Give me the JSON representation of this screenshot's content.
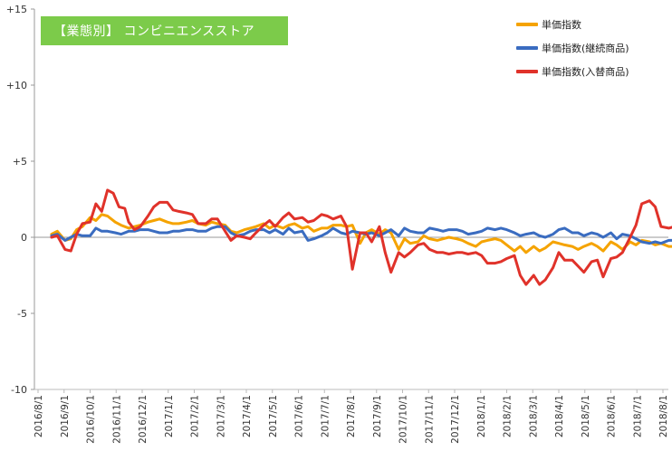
{
  "chart_data": {
    "type": "line",
    "title": "【業態別】 コンビニエンスストア",
    "title_bg": "#7CCB4A",
    "ylim": [
      -10,
      15
    ],
    "yticks": [
      {
        "value": 15,
        "label": "+15"
      },
      {
        "value": 10,
        "label": "+10"
      },
      {
        "value": 5,
        "label": "+5"
      },
      {
        "value": 0,
        "label": "0"
      },
      {
        "value": -5,
        "label": "-5"
      },
      {
        "value": -10,
        "label": "-10"
      }
    ],
    "xticks": [
      "2016/8/1",
      "2016/9/1",
      "2016/10/1",
      "2016/11/1",
      "2016/12/1",
      "2017/1/1",
      "2017/2/1",
      "2017/3/1",
      "2017/4/1",
      "2017/5/1",
      "2017/6/1",
      "2017/7/1",
      "2017/8/1",
      "2017/9/1",
      "2017/10/1",
      "2017/11/1",
      "2017/12/1",
      "2018/1/1",
      "2018/2/1",
      "2018/3/1",
      "2018/4/1",
      "2018/5/1",
      "2018/6/1",
      "2018/7/1",
      "2018/8/1"
    ],
    "legend_position": "top-right",
    "gridlines": false,
    "series": [
      {
        "name": "単価指数",
        "color": "#F5A300",
        "points": [
          [
            0.7,
            0.2
          ],
          [
            1.0,
            0.4
          ],
          [
            1.4,
            -0.2
          ],
          [
            1.7,
            -0.1
          ],
          [
            2.0,
            0.5
          ],
          [
            2.3,
            0.7
          ],
          [
            2.7,
            1.3
          ],
          [
            3.0,
            1.1
          ],
          [
            3.3,
            1.5
          ],
          [
            3.6,
            1.4
          ],
          [
            4.0,
            1.0
          ],
          [
            4.3,
            0.8
          ],
          [
            4.7,
            0.6
          ],
          [
            5.0,
            0.7
          ],
          [
            5.3,
            0.8
          ],
          [
            5.7,
            1.0
          ],
          [
            6.0,
            1.1
          ],
          [
            6.3,
            1.2
          ],
          [
            6.7,
            1.0
          ],
          [
            7.0,
            0.9
          ],
          [
            7.3,
            0.9
          ],
          [
            7.7,
            1.0
          ],
          [
            8.0,
            1.1
          ],
          [
            8.3,
            0.9
          ],
          [
            8.7,
            0.8
          ],
          [
            9.0,
            1.0
          ],
          [
            9.3,
            0.9
          ],
          [
            9.7,
            0.8
          ],
          [
            10.0,
            0.4
          ],
          [
            10.3,
            0.3
          ],
          [
            10.7,
            0.5
          ],
          [
            11.0,
            0.6
          ],
          [
            11.3,
            0.7
          ],
          [
            11.7,
            0.9
          ],
          [
            12.0,
            0.6
          ],
          [
            12.3,
            0.8
          ],
          [
            12.7,
            0.6
          ],
          [
            13.0,
            0.8
          ],
          [
            13.3,
            0.9
          ],
          [
            13.7,
            0.6
          ],
          [
            14.0,
            0.7
          ],
          [
            14.3,
            0.4
          ],
          [
            14.7,
            0.6
          ],
          [
            15.0,
            0.6
          ],
          [
            15.3,
            0.8
          ],
          [
            15.7,
            0.8
          ],
          [
            16.0,
            0.7
          ],
          [
            16.3,
            0.8
          ],
          [
            16.7,
            -0.4
          ],
          [
            17.0,
            0.3
          ],
          [
            17.3,
            0.5
          ],
          [
            17.7,
            0.2
          ],
          [
            18.0,
            0.5
          ],
          [
            18.3,
            0.3
          ],
          [
            18.7,
            -0.8
          ],
          [
            19.0,
            -0.1
          ],
          [
            19.3,
            -0.4
          ],
          [
            19.7,
            -0.3
          ],
          [
            20.0,
            0.1
          ],
          [
            20.3,
            -0.1
          ],
          [
            20.7,
            -0.2
          ],
          [
            21.0,
            -0.1
          ],
          [
            21.3,
            0.0
          ],
          [
            21.7,
            -0.1
          ],
          [
            22.0,
            -0.2
          ],
          [
            22.3,
            -0.4
          ],
          [
            22.7,
            -0.6
          ],
          [
            23.0,
            -0.3
          ],
          [
            23.3,
            -0.2
          ],
          [
            23.7,
            -0.1
          ],
          [
            24.0,
            -0.2
          ],
          [
            24.3,
            -0.5
          ],
          [
            24.7,
            -0.9
          ],
          [
            25.0,
            -0.6
          ],
          [
            25.3,
            -1.0
          ],
          [
            25.7,
            -0.6
          ],
          [
            26.0,
            -0.9
          ],
          [
            26.3,
            -0.7
          ],
          [
            26.7,
            -0.3
          ],
          [
            27.0,
            -0.4
          ],
          [
            27.3,
            -0.5
          ],
          [
            27.7,
            -0.6
          ],
          [
            28.0,
            -0.8
          ],
          [
            28.3,
            -0.6
          ],
          [
            28.7,
            -0.4
          ],
          [
            29.0,
            -0.6
          ],
          [
            29.3,
            -0.9
          ],
          [
            29.7,
            -0.3
          ],
          [
            30.0,
            -0.5
          ],
          [
            30.3,
            -0.8
          ],
          [
            30.7,
            -0.3
          ],
          [
            31.0,
            -0.5
          ],
          [
            31.3,
            -0.2
          ],
          [
            31.7,
            -0.3
          ],
          [
            32.0,
            -0.5
          ],
          [
            32.3,
            -0.4
          ],
          [
            32.7,
            -0.6
          ],
          [
            33.0,
            -0.6
          ]
        ]
      },
      {
        "name": "単価指数(継続商品)",
        "color": "#3A6CC0",
        "points": [
          [
            0.7,
            0.1
          ],
          [
            1.0,
            0.2
          ],
          [
            1.4,
            -0.2
          ],
          [
            1.7,
            0.0
          ],
          [
            2.0,
            0.2
          ],
          [
            2.3,
            0.1
          ],
          [
            2.7,
            0.1
          ],
          [
            3.0,
            0.6
          ],
          [
            3.3,
            0.4
          ],
          [
            3.6,
            0.4
          ],
          [
            4.0,
            0.3
          ],
          [
            4.3,
            0.2
          ],
          [
            4.7,
            0.4
          ],
          [
            5.0,
            0.4
          ],
          [
            5.3,
            0.5
          ],
          [
            5.7,
            0.5
          ],
          [
            6.0,
            0.4
          ],
          [
            6.3,
            0.3
          ],
          [
            6.7,
            0.3
          ],
          [
            7.0,
            0.4
          ],
          [
            7.3,
            0.4
          ],
          [
            7.7,
            0.5
          ],
          [
            8.0,
            0.5
          ],
          [
            8.3,
            0.4
          ],
          [
            8.7,
            0.4
          ],
          [
            9.0,
            0.6
          ],
          [
            9.3,
            0.7
          ],
          [
            9.7,
            0.7
          ],
          [
            10.0,
            0.3
          ],
          [
            10.3,
            0.1
          ],
          [
            10.7,
            0.2
          ],
          [
            11.0,
            0.4
          ],
          [
            11.3,
            0.5
          ],
          [
            11.7,
            0.5
          ],
          [
            12.0,
            0.3
          ],
          [
            12.3,
            0.5
          ],
          [
            12.7,
            0.2
          ],
          [
            13.0,
            0.6
          ],
          [
            13.3,
            0.3
          ],
          [
            13.7,
            0.4
          ],
          [
            14.0,
            -0.2
          ],
          [
            14.3,
            -0.1
          ],
          [
            14.7,
            0.1
          ],
          [
            15.0,
            0.3
          ],
          [
            15.3,
            0.6
          ],
          [
            15.7,
            0.3
          ],
          [
            16.0,
            0.2
          ],
          [
            16.3,
            0.4
          ],
          [
            16.7,
            0.3
          ],
          [
            17.0,
            0.2
          ],
          [
            17.3,
            0.3
          ],
          [
            17.7,
            0.1
          ],
          [
            18.0,
            0.3
          ],
          [
            18.3,
            0.5
          ],
          [
            18.7,
            0.1
          ],
          [
            19.0,
            0.6
          ],
          [
            19.3,
            0.4
          ],
          [
            19.7,
            0.3
          ],
          [
            20.0,
            0.3
          ],
          [
            20.3,
            0.6
          ],
          [
            20.7,
            0.5
          ],
          [
            21.0,
            0.4
          ],
          [
            21.3,
            0.5
          ],
          [
            21.7,
            0.5
          ],
          [
            22.0,
            0.4
          ],
          [
            22.3,
            0.2
          ],
          [
            22.7,
            0.3
          ],
          [
            23.0,
            0.4
          ],
          [
            23.3,
            0.6
          ],
          [
            23.7,
            0.5
          ],
          [
            24.0,
            0.6
          ],
          [
            24.3,
            0.5
          ],
          [
            24.7,
            0.3
          ],
          [
            25.0,
            0.1
          ],
          [
            25.3,
            0.2
          ],
          [
            25.7,
            0.3
          ],
          [
            26.0,
            0.1
          ],
          [
            26.3,
            0.0
          ],
          [
            26.7,
            0.2
          ],
          [
            27.0,
            0.5
          ],
          [
            27.3,
            0.6
          ],
          [
            27.7,
            0.3
          ],
          [
            28.0,
            0.3
          ],
          [
            28.3,
            0.1
          ],
          [
            28.7,
            0.3
          ],
          [
            29.0,
            0.2
          ],
          [
            29.3,
            0.0
          ],
          [
            29.7,
            0.3
          ],
          [
            30.0,
            -0.1
          ],
          [
            30.3,
            0.2
          ],
          [
            30.7,
            0.1
          ],
          [
            31.0,
            -0.1
          ],
          [
            31.3,
            -0.3
          ],
          [
            31.7,
            -0.4
          ],
          [
            32.0,
            -0.3
          ],
          [
            32.3,
            -0.4
          ],
          [
            32.7,
            -0.2
          ],
          [
            33.0,
            -0.2
          ]
        ]
      },
      {
        "name": "単価指数(入替商品)",
        "color": "#E0322A",
        "points": [
          [
            0.7,
            0.0
          ],
          [
            1.0,
            0.1
          ],
          [
            1.4,
            -0.8
          ],
          [
            1.7,
            -0.9
          ],
          [
            2.0,
            0.2
          ],
          [
            2.3,
            0.9
          ],
          [
            2.7,
            1.0
          ],
          [
            3.0,
            2.2
          ],
          [
            3.3,
            1.7
          ],
          [
            3.6,
            3.1
          ],
          [
            3.9,
            2.9
          ],
          [
            4.2,
            2.0
          ],
          [
            4.5,
            1.9
          ],
          [
            4.7,
            1.0
          ],
          [
            5.0,
            0.5
          ],
          [
            5.3,
            0.7
          ],
          [
            5.7,
            1.4
          ],
          [
            6.0,
            2.0
          ],
          [
            6.3,
            2.3
          ],
          [
            6.7,
            2.3
          ],
          [
            7.0,
            1.8
          ],
          [
            7.3,
            1.7
          ],
          [
            7.7,
            1.6
          ],
          [
            8.0,
            1.5
          ],
          [
            8.3,
            0.9
          ],
          [
            8.7,
            0.9
          ],
          [
            9.0,
            1.2
          ],
          [
            9.3,
            1.2
          ],
          [
            9.7,
            0.4
          ],
          [
            10.0,
            -0.2
          ],
          [
            10.3,
            0.1
          ],
          [
            10.7,
            0.0
          ],
          [
            11.0,
            -0.1
          ],
          [
            11.3,
            0.3
          ],
          [
            11.7,
            0.8
          ],
          [
            12.0,
            1.1
          ],
          [
            12.3,
            0.7
          ],
          [
            12.7,
            1.3
          ],
          [
            13.0,
            1.6
          ],
          [
            13.3,
            1.2
          ],
          [
            13.7,
            1.3
          ],
          [
            14.0,
            1.0
          ],
          [
            14.3,
            1.1
          ],
          [
            14.7,
            1.5
          ],
          [
            15.0,
            1.4
          ],
          [
            15.3,
            1.2
          ],
          [
            15.7,
            1.4
          ],
          [
            16.0,
            0.7
          ],
          [
            16.3,
            -2.1
          ],
          [
            16.7,
            0.3
          ],
          [
            17.0,
            0.3
          ],
          [
            17.3,
            -0.3
          ],
          [
            17.7,
            0.7
          ],
          [
            18.0,
            -1.0
          ],
          [
            18.3,
            -2.3
          ],
          [
            18.7,
            -1.0
          ],
          [
            19.0,
            -1.3
          ],
          [
            19.3,
            -1.0
          ],
          [
            19.7,
            -0.5
          ],
          [
            20.0,
            -0.4
          ],
          [
            20.3,
            -0.8
          ],
          [
            20.7,
            -1.0
          ],
          [
            21.0,
            -1.0
          ],
          [
            21.3,
            -1.1
          ],
          [
            21.7,
            -1.0
          ],
          [
            22.0,
            -1.0
          ],
          [
            22.3,
            -1.1
          ],
          [
            22.7,
            -1.0
          ],
          [
            23.0,
            -1.2
          ],
          [
            23.3,
            -1.7
          ],
          [
            23.7,
            -1.7
          ],
          [
            24.0,
            -1.6
          ],
          [
            24.3,
            -1.4
          ],
          [
            24.7,
            -1.2
          ],
          [
            25.0,
            -2.5
          ],
          [
            25.3,
            -3.1
          ],
          [
            25.7,
            -2.5
          ],
          [
            26.0,
            -3.1
          ],
          [
            26.3,
            -2.8
          ],
          [
            26.7,
            -2.0
          ],
          [
            27.0,
            -1.0
          ],
          [
            27.3,
            -1.5
          ],
          [
            27.7,
            -1.5
          ],
          [
            28.0,
            -1.9
          ],
          [
            28.3,
            -2.3
          ],
          [
            28.7,
            -1.6
          ],
          [
            29.0,
            -1.5
          ],
          [
            29.3,
            -2.6
          ],
          [
            29.7,
            -1.4
          ],
          [
            30.0,
            -1.3
          ],
          [
            30.3,
            -1.0
          ],
          [
            30.7,
            0.0
          ],
          [
            31.0,
            0.8
          ],
          [
            31.3,
            2.2
          ],
          [
            31.7,
            2.4
          ],
          [
            32.0,
            2.0
          ],
          [
            32.3,
            0.7
          ],
          [
            32.7,
            0.6
          ],
          [
            33.0,
            0.7
          ]
        ]
      }
    ]
  }
}
